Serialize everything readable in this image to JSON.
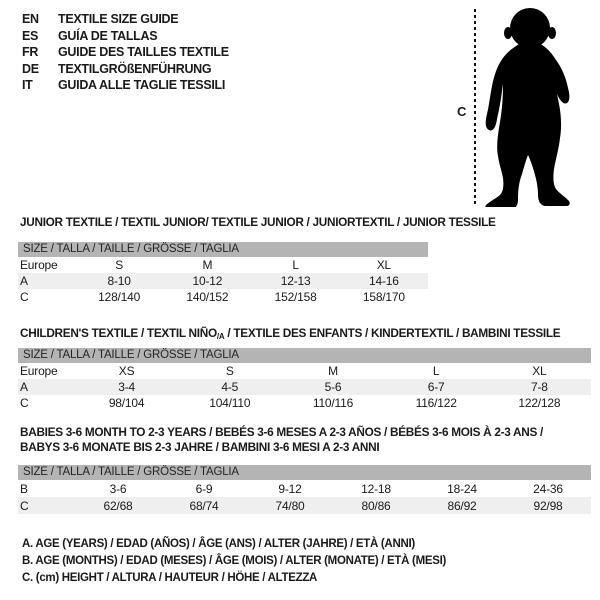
{
  "header": {
    "languages": [
      {
        "code": "EN",
        "label": "TEXTILE SIZE GUIDE"
      },
      {
        "code": "ES",
        "label": "GUÍA DE TALLAS"
      },
      {
        "code": "FR",
        "label": "GUIDE DES TAILLES TEXTILE"
      },
      {
        "code": "DE",
        "label": "TEXTILGRÖßENFÜHRUNG"
      },
      {
        "code": "IT",
        "label": "GUIDA ALLE TAGLIE TESSILI"
      }
    ]
  },
  "figure": {
    "measure_label": "C",
    "silhouette": "toddler-silhouette",
    "silhouette_color": "#000000"
  },
  "colors": {
    "size_bar_bg": "#b4b4b4",
    "row_alt_bg": "#efefef",
    "text": "#1a1a1a"
  },
  "size_bar_label": "SIZE / TALLA / TAILLE / GRÖSSE / TAGLIA",
  "tables": [
    {
      "title": "JUNIOR TEXTILE / TEXTIL JUNIOR/ TEXTILE JUNIOR / JUNIORTEXTIL / JUNIOR TESSILE",
      "size_bar": "SIZE / TALLA / TAILLE / GRÖSSE / TAGLIA",
      "rows": [
        [
          "Europe",
          "S",
          "M",
          "L",
          "XL"
        ],
        [
          "A",
          "8-10",
          "10-12",
          "12-13",
          "14-16"
        ],
        [
          "C",
          "128/140",
          "140/152",
          "152/158",
          "158/170"
        ]
      ]
    },
    {
      "title_pre": "CHILDREN'S TEXTILE / TEXTIL NIÑO",
      "title_sub": "/A",
      "title_post": " / TEXTILE DES ENFANTS / KINDERTEXTIL / BAMBINI TESSILE",
      "size_bar": "SIZE / TALLA / TAILLE / GRÖSSE / TAGLIA",
      "rows": [
        [
          "Europe",
          "XS",
          "S",
          "M",
          "L",
          "XL"
        ],
        [
          "A",
          "3-4",
          "4-5",
          "5-6",
          "6-7",
          "7-8"
        ],
        [
          "C",
          "98/104",
          "104/110",
          "110/116",
          "116/122",
          "122/128"
        ]
      ]
    },
    {
      "title_line1": "BABIES 3-6 MONTH TO 2-3 YEARS / BEBÉS 3-6 MESES A 2-3 AÑOS / BÉBÉS 3-6 MOIS À 2-3 ANS /",
      "title_line2": "BABYS 3-6 MONATE BIS 2-3 JAHRE / BAMBINI 3-6 MESI A 2-3 ANNI",
      "size_bar": "SIZE / TALLA / TAILLE / GRÖSSE / TAGLIA",
      "rows": [
        [
          "B",
          "3-6",
          "6-9",
          "9-12",
          "12-18",
          "18-24",
          "24-36"
        ],
        [
          "C",
          "62/68",
          "68/74",
          "74/80",
          "80/86",
          "86/92",
          "92/98"
        ]
      ]
    }
  ],
  "footnotes": [
    "A. AGE (YEARS) / EDAD (AÑOS) / ÂGE (ANS) / ALTER (JAHRE) / ETÀ (ANNI)",
    "B. AGE (MONTHS) / EDAD (MESES) / ÂGE (MOIS) / ALTER (MONATE) / ETÀ (MESI)",
    "C. (cm) HEIGHT / ALTURA / HAUTEUR / HÖHE / ALTEZZA"
  ]
}
